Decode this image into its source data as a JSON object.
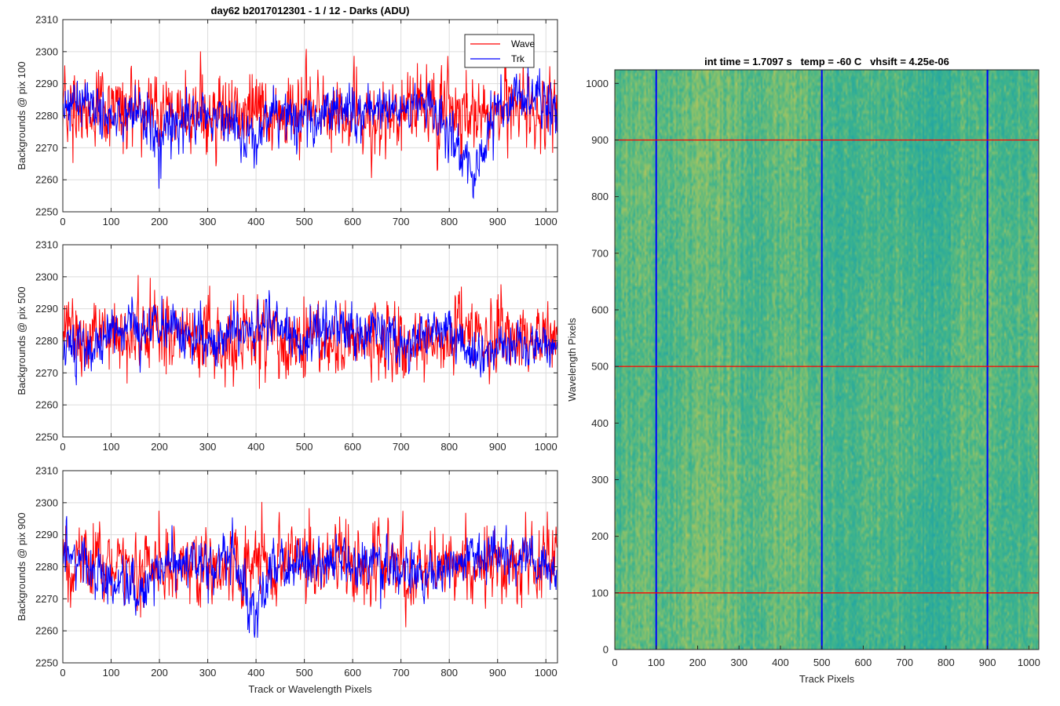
{
  "figure": {
    "title": "day62 b2017012301 - 1 / 12 - Darks (ADU)",
    "heatmap_title": "int time = 1.7097 s   temp = -60 C   vhsift = 4.25e-06"
  },
  "chart_data": [
    {
      "type": "line",
      "title": "day62 b2017012301 - 1 / 12 - Darks (ADU)",
      "xlabel": "",
      "ylabel": "Backgrounds @ pix 100",
      "xlim": [
        0,
        1024
      ],
      "ylim": [
        2250,
        2310
      ],
      "xticks": [
        0,
        100,
        200,
        300,
        400,
        500,
        600,
        700,
        800,
        900,
        1000
      ],
      "yticks": [
        2250,
        2260,
        2270,
        2280,
        2290,
        2300,
        2310
      ],
      "grid": true,
      "legend": "top-right",
      "series": [
        {
          "name": "Wave",
          "color": "#ff0000",
          "n_points": 1024,
          "envelope": [
            [
              0,
              2281,
              6
            ],
            [
              50,
              2282,
              6
            ],
            [
              100,
              2281,
              7
            ],
            [
              200,
              2281,
              6
            ],
            [
              300,
              2281,
              6
            ],
            [
              400,
              2281,
              6
            ],
            [
              500,
              2281,
              6
            ],
            [
              600,
              2281,
              6
            ],
            [
              700,
              2280,
              6
            ],
            [
              780,
              2285,
              7
            ],
            [
              850,
              2282,
              6
            ],
            [
              1024,
              2281,
              6
            ]
          ]
        },
        {
          "name": "Trk",
          "color": "#0000ff",
          "n_points": 1024,
          "envelope": [
            [
              0,
              2283,
              3
            ],
            [
              50,
              2284,
              4
            ],
            [
              100,
              2279,
              4
            ],
            [
              150,
              2281,
              4
            ],
            [
              200,
              2272,
              5
            ],
            [
              250,
              2279,
              4
            ],
            [
              300,
              2280,
              3
            ],
            [
              350,
              2277,
              4
            ],
            [
              380,
              2270,
              4
            ],
            [
              420,
              2280,
              4
            ],
            [
              500,
              2280,
              4
            ],
            [
              600,
              2283,
              4
            ],
            [
              700,
              2281,
              4
            ],
            [
              760,
              2285,
              4
            ],
            [
              800,
              2273,
              4
            ],
            [
              850,
              2262,
              4
            ],
            [
              900,
              2283,
              4
            ],
            [
              950,
              2287,
              4
            ],
            [
              1024,
              2283,
              4
            ]
          ]
        }
      ]
    },
    {
      "type": "line",
      "title": "",
      "xlabel": "",
      "ylabel": "Backgrounds @ pix 500",
      "xlim": [
        0,
        1024
      ],
      "ylim": [
        2250,
        2310
      ],
      "xticks": [
        0,
        100,
        200,
        300,
        400,
        500,
        600,
        700,
        800,
        900,
        1000
      ],
      "yticks": [
        2250,
        2260,
        2270,
        2280,
        2290,
        2300,
        2310
      ],
      "grid": true,
      "series": [
        {
          "name": "Wave",
          "color": "#ff0000",
          "n_points": 1024,
          "envelope": [
            [
              0,
              2282,
              6
            ],
            [
              100,
              2281,
              6
            ],
            [
              300,
              2281,
              6
            ],
            [
              500,
              2281,
              6
            ],
            [
              700,
              2280,
              6
            ],
            [
              900,
              2281,
              6
            ],
            [
              1024,
              2281,
              6
            ]
          ]
        },
        {
          "name": "Trk",
          "color": "#0000ff",
          "n_points": 1024,
          "envelope": [
            [
              0,
              2275,
              4
            ],
            [
              50,
              2281,
              4
            ],
            [
              100,
              2284,
              4
            ],
            [
              150,
              2282,
              4
            ],
            [
              200,
              2285,
              4
            ],
            [
              250,
              2282,
              4
            ],
            [
              300,
              2279,
              4
            ],
            [
              350,
              2282,
              4
            ],
            [
              400,
              2285,
              4
            ],
            [
              450,
              2285,
              4
            ],
            [
              500,
              2279,
              4
            ],
            [
              550,
              2285,
              4
            ],
            [
              600,
              2282,
              4
            ],
            [
              650,
              2284,
              4
            ],
            [
              700,
              2278,
              4
            ],
            [
              750,
              2282,
              4
            ],
            [
              800,
              2283,
              4
            ],
            [
              850,
              2275,
              4
            ],
            [
              900,
              2279,
              4
            ],
            [
              1024,
              2281,
              4
            ]
          ]
        }
      ]
    },
    {
      "type": "line",
      "title": "",
      "xlabel": "Track or Wavelength Pixels",
      "ylabel": "Backgrounds @ pix 900",
      "xlim": [
        0,
        1024
      ],
      "ylim": [
        2250,
        2310
      ],
      "xticks": [
        0,
        100,
        200,
        300,
        400,
        500,
        600,
        700,
        800,
        900,
        1000
      ],
      "yticks": [
        2250,
        2260,
        2270,
        2280,
        2290,
        2300,
        2310
      ],
      "grid": true,
      "series": [
        {
          "name": "Wave",
          "color": "#ff0000",
          "n_points": 1024,
          "envelope": [
            [
              0,
              2282,
              6
            ],
            [
              100,
              2281,
              6
            ],
            [
              300,
              2280,
              6
            ],
            [
              500,
              2281,
              6
            ],
            [
              700,
              2279,
              6
            ],
            [
              900,
              2281,
              6
            ],
            [
              1024,
              2281,
              6
            ]
          ]
        },
        {
          "name": "Trk",
          "color": "#0000ff",
          "n_points": 1024,
          "envelope": [
            [
              0,
              2285,
              4
            ],
            [
              50,
              2281,
              4
            ],
            [
              100,
              2275,
              4
            ],
            [
              150,
              2270,
              4
            ],
            [
              200,
              2281,
              4
            ],
            [
              300,
              2281,
              4
            ],
            [
              350,
              2282,
              4
            ],
            [
              400,
              2267,
              5
            ],
            [
              450,
              2280,
              4
            ],
            [
              500,
              2281,
              4
            ],
            [
              600,
              2282,
              4
            ],
            [
              700,
              2281,
              4
            ],
            [
              750,
              2276,
              4
            ],
            [
              800,
              2281,
              4
            ],
            [
              900,
              2283,
              4
            ],
            [
              950,
              2282,
              4
            ],
            [
              1024,
              2281,
              4
            ]
          ]
        }
      ]
    },
    {
      "type": "heatmap",
      "title": "int time = 1.7097 s   temp = -60 C   vhsift = 4.25e-06",
      "xlabel": "Track Pixels",
      "ylabel": "Wavelength Pixels",
      "xlim": [
        0,
        1024
      ],
      "ylim": [
        0,
        1024
      ],
      "xticks": [
        0,
        100,
        200,
        300,
        400,
        500,
        600,
        700,
        800,
        900,
        1000
      ],
      "yticks": [
        0,
        100,
        200,
        300,
        400,
        500,
        600,
        700,
        800,
        900,
        1000
      ],
      "colormap": [
        "#20a5a5",
        "#3fb48c",
        "#8cc26a",
        "#c2c558"
      ],
      "vlines": {
        "x": [
          100,
          500,
          900
        ],
        "color": "#0000ff"
      },
      "hlines": {
        "y": [
          100,
          500,
          900
        ],
        "color": "#ff0000"
      }
    }
  ]
}
